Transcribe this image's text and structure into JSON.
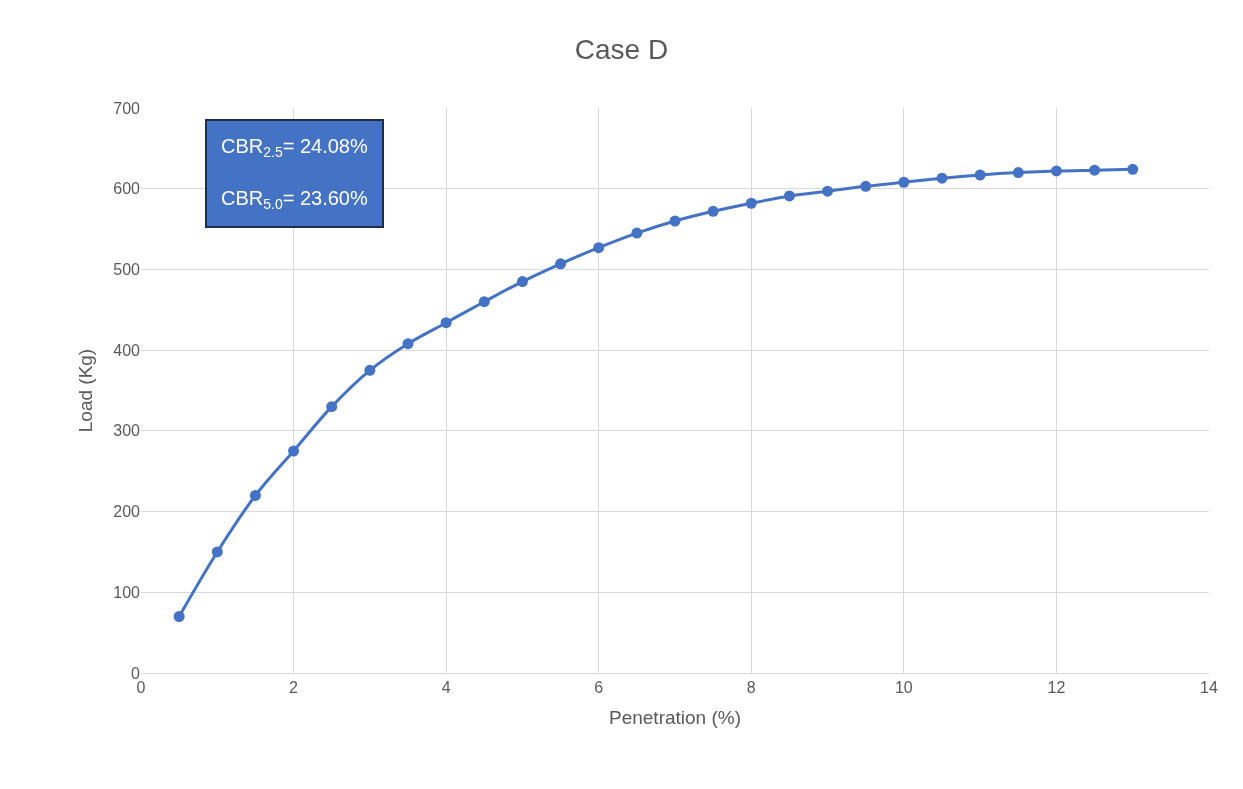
{
  "chart_data": {
    "type": "line",
    "title": "Case D",
    "xlabel": "Penetration (%)",
    "ylabel": "Load (Kg)",
    "x": [
      0.5,
      1,
      1.5,
      2,
      2.5,
      3,
      3.5,
      4,
      4.5,
      5,
      5.5,
      6,
      6.5,
      7,
      7.5,
      8,
      8.5,
      9,
      9.5,
      10,
      10.5,
      11,
      11.5,
      12,
      12.5,
      13
    ],
    "series": [
      {
        "color": "#4472c4",
        "values": [
          70,
          150,
          220,
          275,
          330,
          375,
          408,
          434,
          460,
          485,
          507,
          527,
          545,
          560,
          572,
          582,
          591,
          597,
          603,
          608,
          613,
          617,
          620,
          622,
          623,
          624
        ]
      }
    ],
    "xlim": [
      0,
      14
    ],
    "xticks": [
      0,
      2,
      4,
      6,
      8,
      10,
      12,
      14
    ],
    "ylim": [
      0,
      700
    ],
    "yticks": [
      0,
      100,
      200,
      300,
      400,
      500,
      600,
      700
    ],
    "grid": true,
    "marker": "circle",
    "line_style": "solid",
    "annotations": [
      "CBR$_{2.5}$= 24.08%",
      "CBR$_{5.0}$= 23.60%"
    ]
  }
}
